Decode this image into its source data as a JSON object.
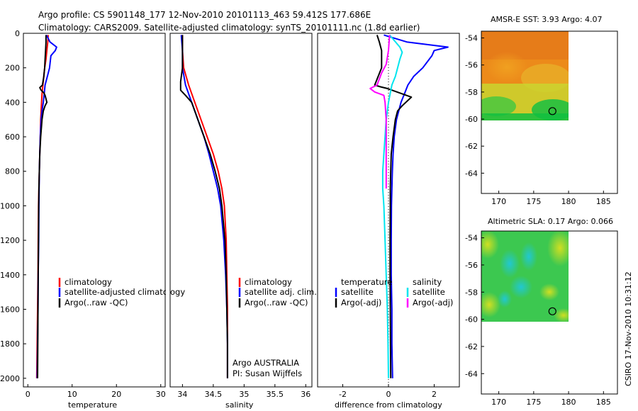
{
  "header": {
    "line1": "Argo profile: CS 5901148_177 12-Nov-2010 20101113_463 59.412S 177.686E",
    "line2": "Climatology: CARS2009. Satellite-adjusted climatology: synTS_20101111.nc (1.8d earlier)"
  },
  "credit": "CSIRO 17-Nov-2010 10:31:12",
  "colors": {
    "climatology": "#ff0000",
    "satellite": "#0000ff",
    "argo": "#000000",
    "satellite_diff": "#00e5ee",
    "argo_adj": "#ff00ff"
  },
  "chart_data": [
    {
      "type": "line",
      "panel": "temperature",
      "xlabel": "temperature",
      "ylabel": "",
      "xlim": [
        -1,
        31
      ],
      "ylim": [
        2050,
        0
      ],
      "xticks": [
        "0",
        "10",
        "20",
        "30"
      ],
      "xtick_values": [
        0,
        10,
        20,
        30
      ],
      "yticks": [
        "0",
        "200",
        "400",
        "600",
        "800",
        "1000",
        "1200",
        "1400",
        "1600",
        "1800",
        "2000"
      ],
      "ytick_values": [
        0,
        200,
        400,
        600,
        800,
        1000,
        1200,
        1400,
        1600,
        1800,
        2000
      ],
      "legend": [
        "climatology",
        "satellite-adjusted climatology",
        "Argo(..raw -QC)"
      ],
      "series": [
        {
          "name": "climatology",
          "color": "#ff0000",
          "points": [
            [
              4.6,
              10
            ],
            [
              4.5,
              50
            ],
            [
              4.3,
              100
            ],
            [
              4.1,
              150
            ],
            [
              3.8,
              200
            ],
            [
              3.6,
              250
            ],
            [
              3.4,
              300
            ],
            [
              3.2,
              350
            ],
            [
              3.1,
              400
            ],
            [
              3.0,
              450
            ],
            [
              2.9,
              500
            ],
            [
              2.8,
              600
            ],
            [
              2.7,
              700
            ],
            [
              2.6,
              800
            ],
            [
              2.5,
              900
            ],
            [
              2.4,
              1000
            ],
            [
              2.35,
              1200
            ],
            [
              2.3,
              1400
            ],
            [
              2.2,
              1600
            ],
            [
              2.1,
              1800
            ],
            [
              2.0,
              2000
            ]
          ]
        },
        {
          "name": "satellite-adjusted climatology",
          "color": "#0000ff",
          "points": [
            [
              4.2,
              10
            ],
            [
              5.0,
              50
            ],
            [
              6.5,
              80
            ],
            [
              6.2,
              100
            ],
            [
              5.2,
              130
            ],
            [
              4.9,
              200
            ],
            [
              4.4,
              250
            ],
            [
              3.9,
              300
            ],
            [
              3.7,
              350
            ],
            [
              3.5,
              400
            ],
            [
              3.2,
              450
            ],
            [
              3.0,
              500
            ],
            [
              2.8,
              600
            ],
            [
              2.7,
              700
            ],
            [
              2.6,
              800
            ],
            [
              2.55,
              900
            ],
            [
              2.5,
              1000
            ],
            [
              2.45,
              1200
            ],
            [
              2.35,
              1400
            ],
            [
              2.3,
              1600
            ],
            [
              2.2,
              1800
            ],
            [
              2.1,
              2000
            ]
          ]
        },
        {
          "name": "Argo(..raw -QC)",
          "color": "#000000",
          "points": [
            [
              4.1,
              10
            ],
            [
              4.1,
              50
            ],
            [
              4.0,
              100
            ],
            [
              3.9,
              150
            ],
            [
              3.8,
              200
            ],
            [
              3.6,
              250
            ],
            [
              3.3,
              300
            ],
            [
              2.7,
              315
            ],
            [
              3.0,
              330
            ],
            [
              3.6,
              345
            ],
            [
              3.9,
              360
            ],
            [
              4.1,
              380
            ],
            [
              4.3,
              400
            ],
            [
              3.9,
              420
            ],
            [
              3.5,
              450
            ],
            [
              3.2,
              500
            ],
            [
              2.9,
              600
            ],
            [
              2.7,
              700
            ],
            [
              2.6,
              800
            ],
            [
              2.5,
              900
            ],
            [
              2.45,
              1000
            ],
            [
              2.4,
              1200
            ],
            [
              2.35,
              1400
            ],
            [
              2.3,
              1600
            ],
            [
              2.25,
              1800
            ],
            [
              2.2,
              2000
            ]
          ]
        }
      ]
    },
    {
      "type": "line",
      "panel": "salinity",
      "xlabel": "salinity",
      "xlim": [
        33.8,
        36.1
      ],
      "ylim": [
        2050,
        0
      ],
      "xticks": [
        "34",
        "34.5",
        "35",
        "35.5",
        "36"
      ],
      "xtick_values": [
        34,
        34.5,
        35,
        35.5,
        36
      ],
      "legend": [
        "climatology",
        "satellite adj. clim.",
        "Argo(..raw -QC)"
      ],
      "annotation": [
        "Argo AUSTRALIA",
        "PI: Susan Wijffels"
      ],
      "series": [
        {
          "name": "climatology",
          "color": "#ff0000",
          "points": [
            [
              34.0,
              10
            ],
            [
              34.0,
              100
            ],
            [
              34.02,
              200
            ],
            [
              34.1,
              300
            ],
            [
              34.2,
              400
            ],
            [
              34.3,
              500
            ],
            [
              34.4,
              600
            ],
            [
              34.5,
              700
            ],
            [
              34.58,
              800
            ],
            [
              34.64,
              900
            ],
            [
              34.68,
              1000
            ],
            [
              34.71,
              1200
            ],
            [
              34.72,
              1400
            ],
            [
              34.73,
              1600
            ],
            [
              34.73,
              1800
            ],
            [
              34.73,
              2000
            ]
          ]
        },
        {
          "name": "satellite adj. clim.",
          "color": "#0000ff",
          "points": [
            [
              33.98,
              10
            ],
            [
              34.0,
              100
            ],
            [
              34.0,
              200
            ],
            [
              34.05,
              300
            ],
            [
              34.15,
              400
            ],
            [
              34.25,
              500
            ],
            [
              34.35,
              600
            ],
            [
              34.43,
              700
            ],
            [
              34.5,
              800
            ],
            [
              34.57,
              900
            ],
            [
              34.62,
              1000
            ],
            [
              34.67,
              1200
            ],
            [
              34.7,
              1400
            ],
            [
              34.72,
              1600
            ],
            [
              34.73,
              1800
            ],
            [
              34.73,
              2000
            ]
          ]
        },
        {
          "name": "Argo(..raw -QC)",
          "color": "#000000",
          "points": [
            [
              34.0,
              10
            ],
            [
              34.0,
              100
            ],
            [
              34.0,
              200
            ],
            [
              33.97,
              280
            ],
            [
              33.97,
              330
            ],
            [
              34.05,
              360
            ],
            [
              34.15,
              400
            ],
            [
              34.25,
              500
            ],
            [
              34.35,
              600
            ],
            [
              34.45,
              700
            ],
            [
              34.53,
              800
            ],
            [
              34.6,
              900
            ],
            [
              34.64,
              1000
            ],
            [
              34.69,
              1200
            ],
            [
              34.71,
              1400
            ],
            [
              34.72,
              1600
            ],
            [
              34.73,
              1800
            ],
            [
              34.73,
              2000
            ]
          ]
        }
      ]
    },
    {
      "type": "line",
      "panel": "difference",
      "xlabel": "difference from climatology",
      "xlim": [
        -3.1,
        3.1
      ],
      "ylim": [
        2050,
        0
      ],
      "xticks": [
        "-2",
        "0",
        "2"
      ],
      "xtick_values": [
        -2,
        0,
        2
      ],
      "zero_line": true,
      "legend": [
        "temperature",
        "satellite",
        "Argo(-adj)",
        "salinity",
        "satellite",
        "Argo(-adj)"
      ],
      "series": [
        {
          "name": "temperature satellite",
          "color": "#0000ff",
          "points": [
            [
              -0.2,
              10
            ],
            [
              0.8,
              50
            ],
            [
              2.6,
              80
            ],
            [
              2.0,
              100
            ],
            [
              1.9,
              130
            ],
            [
              1.5,
              200
            ],
            [
              1.1,
              250
            ],
            [
              0.85,
              300
            ],
            [
              0.7,
              350
            ],
            [
              0.55,
              400
            ],
            [
              0.45,
              450
            ],
            [
              0.35,
              500
            ],
            [
              0.25,
              600
            ],
            [
              0.2,
              700
            ],
            [
              0.17,
              800
            ],
            [
              0.15,
              900
            ],
            [
              0.13,
              1000
            ],
            [
              0.12,
              1200
            ],
            [
              0.12,
              1400
            ],
            [
              0.15,
              1600
            ],
            [
              0.15,
              1800
            ],
            [
              0.18,
              2000
            ]
          ]
        },
        {
          "name": "temperature Argo(-adj)",
          "color": "#000000",
          "points": [
            [
              -0.5,
              10
            ],
            [
              -0.4,
              50
            ],
            [
              -0.3,
              100
            ],
            [
              -0.3,
              200
            ],
            [
              -0.6,
              300
            ],
            [
              -0.35,
              310
            ],
            [
              -0.05,
              320
            ],
            [
              1.0,
              370
            ],
            [
              0.6,
              420
            ],
            [
              0.4,
              450
            ],
            [
              0.3,
              500
            ],
            [
              0.2,
              600
            ],
            [
              0.12,
              700
            ],
            [
              0.1,
              800
            ],
            [
              0.08,
              900
            ],
            [
              0.08,
              1000
            ],
            [
              0.07,
              1200
            ],
            [
              0.07,
              1400
            ],
            [
              0.08,
              1600
            ],
            [
              0.09,
              1800
            ],
            [
              0.1,
              2000
            ]
          ]
        },
        {
          "name": "salinity satellite",
          "color": "#00e5ee",
          "points": [
            [
              0.05,
              10
            ],
            [
              0.5,
              80
            ],
            [
              0.6,
              110
            ],
            [
              0.5,
              150
            ],
            [
              0.4,
              200
            ],
            [
              0.3,
              250
            ],
            [
              0.15,
              300
            ],
            [
              0.0,
              400
            ],
            [
              -0.1,
              500
            ],
            [
              -0.15,
              600
            ],
            [
              -0.2,
              700
            ],
            [
              -0.25,
              800
            ],
            [
              -0.25,
              900
            ],
            [
              -0.2,
              1000
            ],
            [
              -0.15,
              1200
            ],
            [
              -0.1,
              1400
            ],
            [
              -0.05,
              1600
            ],
            [
              -0.02,
              1800
            ],
            [
              0.0,
              2000
            ]
          ]
        },
        {
          "name": "salinity Argo(-adj)",
          "color": "#ff00ff",
          "points": [
            [
              0.05,
              10
            ],
            [
              0.0,
              100
            ],
            [
              -0.1,
              180
            ],
            [
              -0.3,
              230
            ],
            [
              -0.5,
              300
            ],
            [
              -0.8,
              320
            ],
            [
              -0.6,
              340
            ],
            [
              -0.2,
              360
            ],
            [
              -0.15,
              400
            ],
            [
              -0.1,
              500
            ],
            [
              -0.1,
              600
            ],
            [
              -0.1,
              700
            ],
            [
              -0.1,
              800
            ],
            [
              -0.1,
              900
            ]
          ]
        }
      ]
    },
    {
      "type": "heatmap",
      "panel": "sst_map",
      "title": "AMSR-E SST: 3.93 Argo: 4.07",
      "xlim": [
        167.5,
        187
      ],
      "ylim": [
        -65.5,
        -53.5
      ],
      "xticks": [
        "170",
        "175",
        "180",
        "185"
      ],
      "xtick_values": [
        170,
        175,
        180,
        185
      ],
      "yticks": [
        "-54",
        "-56",
        "-58",
        "-60",
        "-62",
        "-64"
      ],
      "ytick_values": [
        -54,
        -56,
        -58,
        -60,
        -62,
        -64
      ],
      "data_extent": {
        "lon": [
          167.5,
          180
        ],
        "lat": [
          -60,
          -53.5
        ]
      },
      "marker": {
        "lon": 177.686,
        "lat": -59.412
      }
    },
    {
      "type": "heatmap",
      "panel": "sla_map",
      "title": "Altimetric SLA: 0.17 Argo: 0.066",
      "xlim": [
        167.5,
        187
      ],
      "ylim": [
        -65.5,
        -53.5
      ],
      "xticks": [
        "170",
        "175",
        "180",
        "185"
      ],
      "xtick_values": [
        170,
        175,
        180,
        185
      ],
      "yticks": [
        "-54",
        "-56",
        "-58",
        "-60",
        "-62",
        "-64"
      ],
      "ytick_values": [
        -54,
        -56,
        -58,
        -60,
        -62,
        -64
      ],
      "data_extent": {
        "lon": [
          167.5,
          180
        ],
        "lat": [
          -60,
          -53.5
        ]
      },
      "marker": {
        "lon": 177.686,
        "lat": -59.412
      }
    }
  ]
}
